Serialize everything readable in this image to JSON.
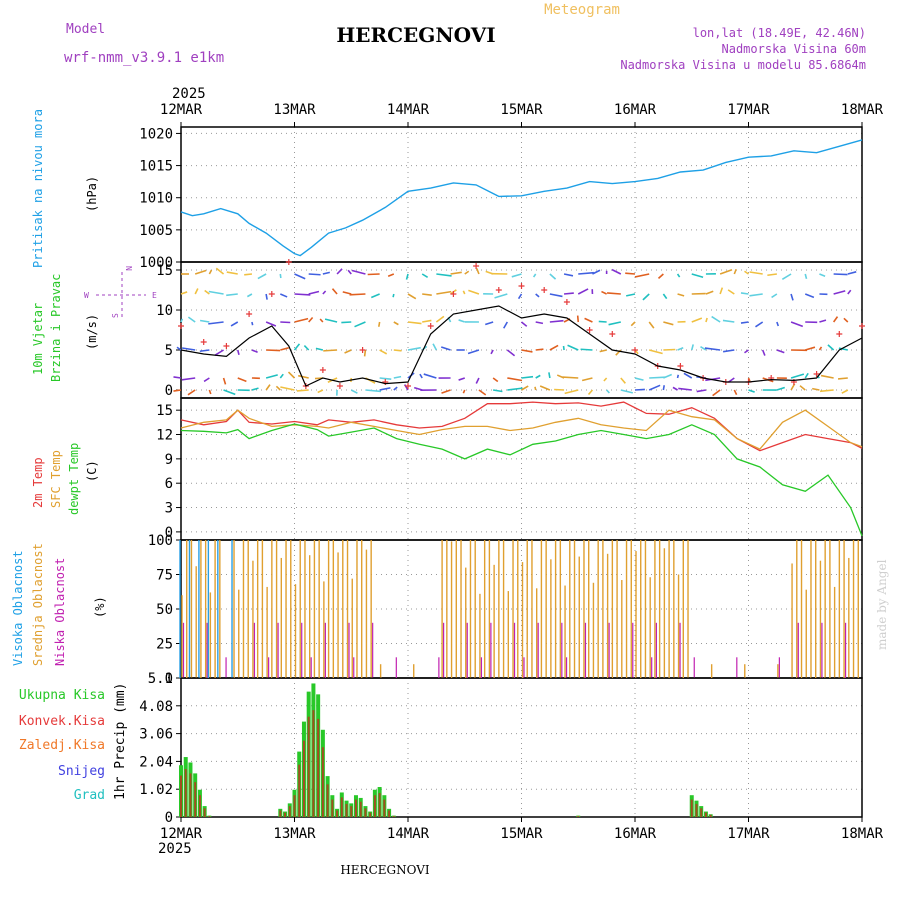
{
  "header": {
    "model_label": "Model",
    "model_name": "wrf-nmm_v3.9.1 e1km",
    "title": "HERCEGNOVI",
    "subtitle": "Meteogram",
    "coords": "lon,lat (18.49E, 42.46N)",
    "elevation": "Nadmorska Visina 60m",
    "model_elevation": "Nadmorska Visina u modelu 85.6864m",
    "watermark": "made by Angel",
    "footer_title": "HERCEGNOVI"
  },
  "axis": {
    "year": "2025",
    "dates": [
      "12MAR",
      "13MAR",
      "14MAR",
      "15MAR",
      "16MAR",
      "17MAR",
      "18MAR"
    ]
  },
  "colors": {
    "pressure": "#1ea0e6",
    "temp2m": "#e53a3a",
    "sfc": "#e0a030",
    "dew": "#28c828",
    "high_cloud": "#28a0e6",
    "mid_cloud": "#e0a030",
    "low_cloud": "#c020b0",
    "total": "#28c828",
    "conv": "#e53a3a",
    "frozen": "#f07828",
    "snow": "#4040e0",
    "hail": "#20c0c0"
  },
  "panels": {
    "pressure": {
      "label1": "Pritisak na nivou mora",
      "unit": "(hPa)"
    },
    "wind": {
      "label1": "10m Vjetar",
      "label2": "Brzina i Pravac",
      "unit": "(m/s)",
      "compass": [
        "N",
        "W",
        "E",
        "S"
      ]
    },
    "temp": {
      "label1": "2m Temp",
      "label2": "SFC Temp",
      "label3": "dewpt Temp",
      "unit": "(C)"
    },
    "cloud": {
      "label1": "Visoka Oblacnost",
      "label2": "Srednja Oblacnost",
      "label3": "Niska Oblacnost",
      "unit": "(%)"
    },
    "precip": {
      "labels": [
        "Ukupna Kisa",
        "Konvek.Kisa",
        "Zaledj.Kisa",
        "Snijeg",
        "Grad"
      ],
      "unit": "1hr Precip (mm)"
    }
  },
  "chart_data": [
    {
      "type": "line",
      "title": "Pritisak na nivou mora",
      "ylabel": "(hPa)",
      "ylim": [
        1000,
        1021
      ],
      "yticks": [
        1000,
        1005,
        1010,
        1015,
        1020
      ],
      "x_days": [
        0,
        0.1,
        0.2,
        0.35,
        0.5,
        0.6,
        0.75,
        0.9,
        1.0,
        1.05,
        1.15,
        1.3,
        1.45,
        1.6,
        1.8,
        2.0,
        2.2,
        2.4,
        2.6,
        2.8,
        3.0,
        3.2,
        3.4,
        3.6,
        3.8,
        4.0,
        4.2,
        4.4,
        4.6,
        4.8,
        5.0,
        5.2,
        5.4,
        5.6,
        5.8,
        6.0
      ],
      "series": [
        {
          "values": [
            1007.8,
            1007.2,
            1007.5,
            1008.3,
            1007.5,
            1006.0,
            1004.5,
            1002.5,
            1001.3,
            1001.0,
            1002.3,
            1004.5,
            1005.3,
            1006.5,
            1008.5,
            1011.0,
            1011.5,
            1012.3,
            1012.0,
            1010.2,
            1010.3,
            1011.0,
            1011.5,
            1012.5,
            1012.2,
            1012.5,
            1013.0,
            1014.0,
            1014.3,
            1015.5,
            1016.3,
            1016.5,
            1017.3,
            1017.0,
            1018.0,
            1019.0
          ]
        }
      ]
    },
    {
      "type": "line",
      "title": "10m Vjetar Brzina i Pravac",
      "ylabel": "(m/s)",
      "ylim": [
        -1,
        16
      ],
      "yticks": [
        0,
        5,
        10,
        15
      ],
      "x_days": [
        0,
        0.2,
        0.4,
        0.6,
        0.8,
        0.95,
        1.1,
        1.25,
        1.4,
        1.6,
        1.8,
        2.0,
        2.2,
        2.4,
        2.6,
        2.8,
        3.0,
        3.2,
        3.4,
        3.6,
        3.8,
        4.0,
        4.2,
        4.4,
        4.6,
        4.8,
        5.0,
        5.2,
        5.4,
        5.6,
        5.8,
        6.0
      ],
      "series": [
        {
          "values": [
            5.0,
            4.5,
            4.2,
            6.5,
            8.0,
            5.5,
            0.5,
            1.5,
            1.0,
            1.5,
            0.8,
            1.0,
            7.0,
            9.5,
            10.0,
            10.5,
            9.0,
            9.5,
            9.0,
            7.0,
            5.0,
            4.5,
            3.0,
            2.5,
            1.5,
            1.0,
            1.0,
            1.3,
            1.2,
            1.5,
            5.0,
            6.5
          ]
        },
        {
          "values": [
            8.0,
            6.0,
            5.5,
            9.5,
            12.0,
            16.0,
            0.5,
            2.5,
            0.5,
            5.0,
            1.0,
            0.5,
            8.0,
            12.0,
            15.5,
            12.5,
            13.0,
            12.5,
            11.0,
            7.5,
            7.0,
            5.0,
            3.0,
            3.0,
            1.5,
            1.0,
            1.0,
            1.5,
            1.0,
            2.0,
            7.0,
            8.0
          ]
        }
      ]
    },
    {
      "type": "line",
      "title": "2m Temp / SFC Temp / dewpt Temp",
      "ylabel": "(C)",
      "ylim": [
        -1,
        16.5
      ],
      "yticks": [
        0,
        3,
        6,
        9,
        12,
        15
      ],
      "x_days": [
        0,
        0.2,
        0.4,
        0.5,
        0.6,
        0.8,
        1.0,
        1.2,
        1.3,
        1.5,
        1.7,
        1.9,
        2.1,
        2.3,
        2.5,
        2.7,
        2.9,
        3.1,
        3.3,
        3.5,
        3.7,
        3.9,
        4.1,
        4.3,
        4.5,
        4.7,
        4.9,
        5.1,
        5.3,
        5.5,
        5.7,
        5.9,
        6.0
      ],
      "series": [
        {
          "name": "2m Temp",
          "values": [
            13.8,
            13.2,
            13.6,
            15.0,
            13.5,
            13.3,
            13.6,
            13.2,
            13.8,
            13.5,
            13.8,
            13.2,
            12.8,
            13.0,
            14.0,
            15.8,
            15.8,
            16.0,
            15.8,
            15.9,
            15.5,
            16.0,
            14.6,
            14.5,
            15.3,
            14.0,
            11.5,
            10.0,
            11.0,
            12.0,
            11.5,
            11.0,
            10.3
          ]
        },
        {
          "name": "SFC Temp",
          "values": [
            12.8,
            13.5,
            13.8,
            15.0,
            14.0,
            13.0,
            13.2,
            13.0,
            12.8,
            13.5,
            13.0,
            12.5,
            12.0,
            12.6,
            13.0,
            13.0,
            12.5,
            12.8,
            13.5,
            14.0,
            13.2,
            12.8,
            12.5,
            15.0,
            14.2,
            13.8,
            11.5,
            10.2,
            13.5,
            15.0,
            13.0,
            11.0,
            10.5
          ]
        },
        {
          "name": "dewpt Temp",
          "values": [
            12.5,
            12.4,
            12.2,
            12.6,
            11.5,
            12.5,
            13.3,
            12.6,
            11.8,
            12.3,
            12.8,
            11.5,
            10.8,
            10.2,
            9.0,
            10.2,
            9.5,
            10.8,
            11.2,
            12.0,
            12.5,
            12.0,
            11.5,
            12.0,
            13.2,
            12.0,
            9.0,
            8.0,
            5.8,
            5.0,
            7.0,
            3.0,
            -0.5
          ]
        }
      ]
    },
    {
      "type": "bar",
      "title": "Oblacnost",
      "ylabel": "(%)",
      "ylim": [
        0,
        100
      ],
      "yticks": [
        0,
        25,
        50,
        75,
        100
      ],
      "note": "hourly vertical bars for high, middle and low cloud cover"
    },
    {
      "type": "bar",
      "title": "1hr Precip",
      "ylabel": "(mm)",
      "ylim": [
        0,
        5.1
      ],
      "yticks": [
        0,
        1.02,
        2.04,
        3.06,
        4.08,
        5.1
      ],
      "series": [
        {
          "name": "Ukupna Kisa",
          "x_hours": [
            0,
            1,
            2,
            3,
            4,
            5,
            6,
            21,
            22,
            23,
            24,
            25,
            26,
            27,
            28,
            29,
            30,
            31,
            32,
            33,
            34,
            35,
            36,
            37,
            38,
            39,
            40,
            41,
            42,
            43,
            44,
            45,
            46,
            47,
            48,
            84,
            108,
            109,
            110,
            111,
            112
          ],
          "values": [
            1.9,
            2.2,
            2.0,
            1.6,
            1.0,
            0.4,
            0.05,
            0.3,
            0.2,
            0.5,
            1.0,
            2.4,
            3.5,
            4.6,
            4.9,
            4.5,
            3.2,
            1.5,
            0.8,
            0.3,
            0.9,
            0.6,
            0.5,
            0.8,
            0.7,
            0.4,
            0.2,
            1.0,
            1.1,
            0.8,
            0.3,
            0.05,
            0,
            0,
            0,
            0.05,
            0.8,
            0.6,
            0.4,
            0.2,
            0.1
          ]
        }
      ]
    }
  ]
}
